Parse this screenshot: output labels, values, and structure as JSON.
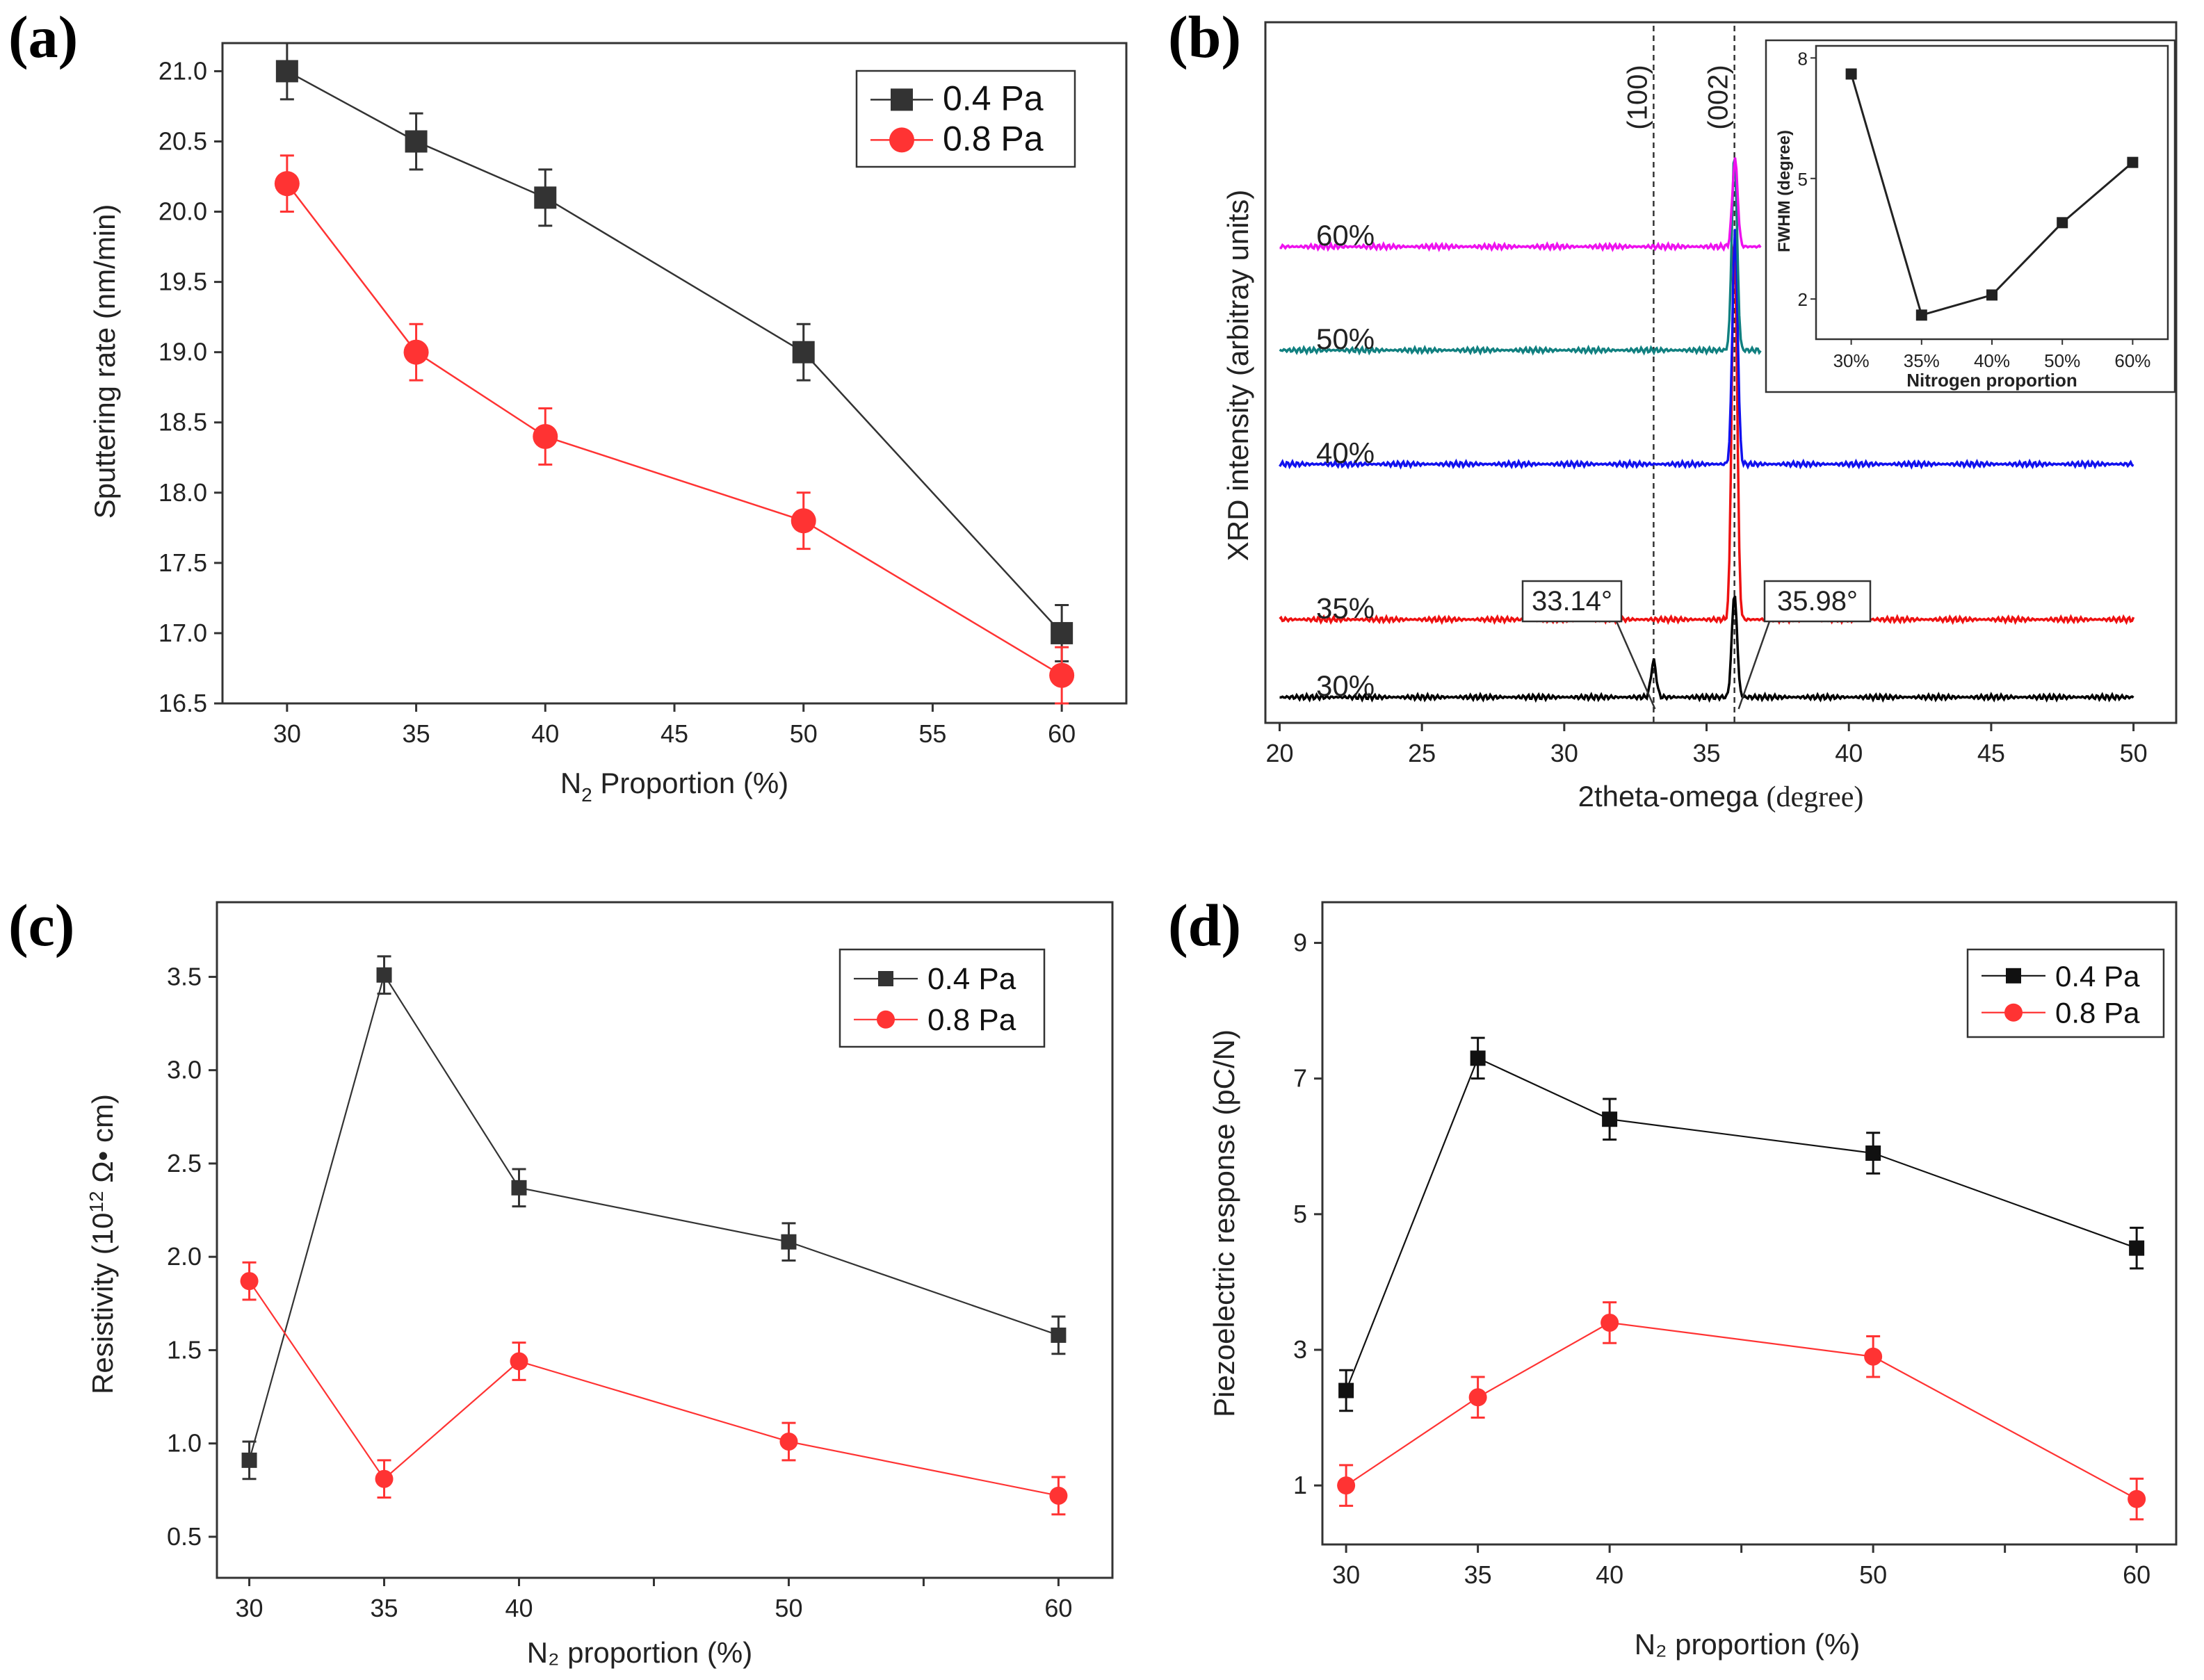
{
  "chart_data": [
    {
      "id": "a",
      "panel_label": "(a)",
      "type": "line",
      "xlabel": "N",
      "xlabel_sub": "2",
      "xlabel_rest": " Proportion (%)",
      "ylabel": "Sputtering rate (nm/min)",
      "xlim": [
        27.5,
        62.5
      ],
      "ylim": [
        16.5,
        21.2
      ],
      "xticks": [
        30,
        35,
        40,
        45,
        50,
        55,
        60
      ],
      "yticks": [
        16.5,
        17.0,
        17.5,
        18.0,
        18.5,
        19.0,
        19.5,
        20.0,
        20.5,
        21.0
      ],
      "ytick_labels": [
        "16.5",
        "17.0",
        "17.5",
        "18.0",
        "18.5",
        "19.0",
        "19.5",
        "20.0",
        "20.5",
        "21.0"
      ],
      "series": [
        {
          "name": "0.4 Pa",
          "color": "#333333",
          "marker": "square",
          "x": [
            30,
            35,
            40,
            50,
            60
          ],
          "values": [
            21.0,
            20.5,
            20.1,
            19.0,
            17.0
          ],
          "err": [
            0.2,
            0.2,
            0.2,
            0.2,
            0.2
          ]
        },
        {
          "name": "0.8 Pa",
          "color": "#ff3333",
          "marker": "circle",
          "x": [
            30,
            35,
            40,
            50,
            60
          ],
          "values": [
            20.2,
            19.0,
            18.4,
            17.8,
            16.7
          ],
          "err": [
            0.2,
            0.2,
            0.2,
            0.2,
            0.2
          ]
        }
      ]
    },
    {
      "id": "b",
      "panel_label": "(b)",
      "type": "line",
      "xlabel": "2theta-omega",
      "xlabel_unit": "(degree)",
      "ylabel": "XRD intensity (arbitray units)",
      "xlim": [
        19.5,
        51.5
      ],
      "xticks": [
        20,
        25,
        30,
        35,
        40,
        45,
        50
      ],
      "series": [
        {
          "name": "30%",
          "color": "#000000",
          "baseline": 0.0,
          "peaks": [
            [
              33.14,
              0.07
            ],
            [
              35.98,
              0.2
            ]
          ]
        },
        {
          "name": "35%",
          "color": "#ee1111",
          "baseline": 0.15,
          "peaks": [
            [
              35.98,
              0.75
            ]
          ]
        },
        {
          "name": "40%",
          "color": "#1111ee",
          "baseline": 0.45,
          "peaks": [
            [
              36.0,
              0.45
            ]
          ]
        },
        {
          "name": "50%",
          "color": "#118080",
          "baseline": 0.67,
          "peaks": [
            [
              35.98,
              0.38
            ]
          ]
        },
        {
          "name": "60%",
          "color": "#ee11ee",
          "baseline": 0.87,
          "peaks": [
            [
              36.0,
              0.17
            ]
          ]
        }
      ],
      "annotations": {
        "peak_100": "(100)",
        "peak_002": "(002)",
        "left_peak_label": "33.14°",
        "right_peak_label": "35.98°",
        "left_peak_position": 33.14,
        "right_peak_position": 35.98
      },
      "inset": {
        "type": "line",
        "xlabel": "Nitrogen proportion",
        "ylabel": "FWHM (degree)",
        "categories": [
          "30%",
          "35%",
          "40%",
          "50%",
          "60%"
        ],
        "values": [
          7.6,
          1.6,
          2.1,
          3.9,
          5.4
        ],
        "ylim": [
          1.0,
          8.3
        ],
        "yticks": [
          2,
          5,
          8
        ]
      }
    },
    {
      "id": "c",
      "panel_label": "(c)",
      "type": "line",
      "xlabel": "N₂ proportion (%)",
      "ylabel": "Resistivity (10",
      "ylabel_sup": "12",
      "ylabel_rest": " Ω• cm)",
      "xlim": [
        28.8,
        62
      ],
      "ylim": [
        0.28,
        3.9
      ],
      "xticks": [
        30,
        35,
        40,
        50,
        60
      ],
      "minor_xticks": [
        45,
        55
      ],
      "yticks": [
        0.5,
        1.0,
        1.5,
        2.0,
        2.5,
        3.0,
        3.5
      ],
      "ytick_labels": [
        "0.5",
        "1.0",
        "1.5",
        "2.0",
        "2.5",
        "3.0",
        "3.5"
      ],
      "series": [
        {
          "name": "0.4 Pa",
          "color": "#333333",
          "marker": "square",
          "x": [
            30,
            35,
            40,
            50,
            60
          ],
          "values": [
            0.91,
            3.51,
            2.37,
            2.08,
            1.58
          ],
          "err": [
            0.1,
            0.1,
            0.1,
            0.1,
            0.1
          ]
        },
        {
          "name": "0.8 Pa",
          "color": "#ff3333",
          "marker": "circle",
          "x": [
            30,
            35,
            40,
            50,
            60
          ],
          "values": [
            1.87,
            0.81,
            1.44,
            1.01,
            0.72
          ],
          "err": [
            0.1,
            0.1,
            0.1,
            0.1,
            0.1
          ]
        }
      ]
    },
    {
      "id": "d",
      "panel_label": "(d)",
      "type": "line",
      "xlabel": "N₂ proportion (%)",
      "ylabel": "Piezoelectric response (pC/N)",
      "xlim": [
        29.1,
        61.5
      ],
      "ylim": [
        0.13,
        9.6
      ],
      "xticks": [
        30,
        35,
        40,
        50,
        60
      ],
      "minor_xticks": [
        45,
        55
      ],
      "yticks": [
        1,
        3,
        5,
        7,
        9
      ],
      "ytick_labels": [
        "1",
        "3",
        "5",
        "7",
        "9"
      ],
      "series": [
        {
          "name": "0.4 Pa",
          "color": "#111111",
          "marker": "square",
          "x": [
            30,
            35,
            40,
            50,
            60
          ],
          "values": [
            2.4,
            7.3,
            6.4,
            5.9,
            4.5
          ],
          "err": [
            0.3,
            0.3,
            0.3,
            0.3,
            0.3
          ]
        },
        {
          "name": "0.8 Pa",
          "color": "#ff3333",
          "marker": "circle",
          "x": [
            30,
            35,
            40,
            50,
            60
          ],
          "values": [
            1.0,
            2.3,
            3.4,
            2.9,
            0.8
          ],
          "err": [
            0.3,
            0.3,
            0.3,
            0.3,
            0.3
          ]
        }
      ]
    }
  ]
}
